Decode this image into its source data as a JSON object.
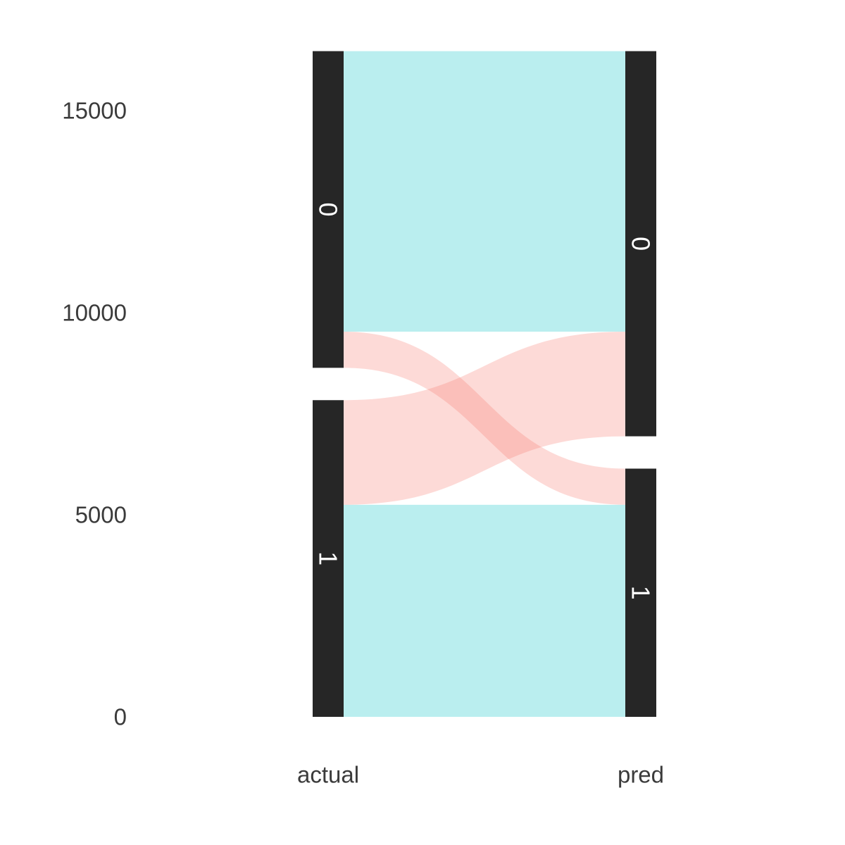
{
  "chart_data": {
    "type": "alluvial",
    "title": "",
    "xlabel": "",
    "ylabel": "",
    "axes": [
      "actual",
      "pred"
    ],
    "y_ticks": [
      0,
      5000,
      10000,
      15000
    ],
    "ylim": [
      0,
      16500
    ],
    "strata": {
      "actual": [
        {
          "label": "0",
          "value": 7835
        },
        {
          "label": "1",
          "value": 7835
        }
      ],
      "pred": [
        {
          "label": "0",
          "value": 9529
        },
        {
          "label": "1",
          "value": 6141
        }
      ]
    },
    "flows": [
      {
        "from": "0",
        "to": "0",
        "value": 6941,
        "fill_group": "1"
      },
      {
        "from": "0",
        "to": "1",
        "value": 894,
        "fill_group": "0"
      },
      {
        "from": "1",
        "to": "0",
        "value": 2588,
        "fill_group": "0"
      },
      {
        "from": "1",
        "to": "1",
        "value": 5247,
        "fill_group": "1"
      }
    ],
    "fill_colors": {
      "0": "#F8766D",
      "1": "#00BFC4"
    },
    "stratum_color": "#262626",
    "grid": false,
    "legend": "none"
  }
}
